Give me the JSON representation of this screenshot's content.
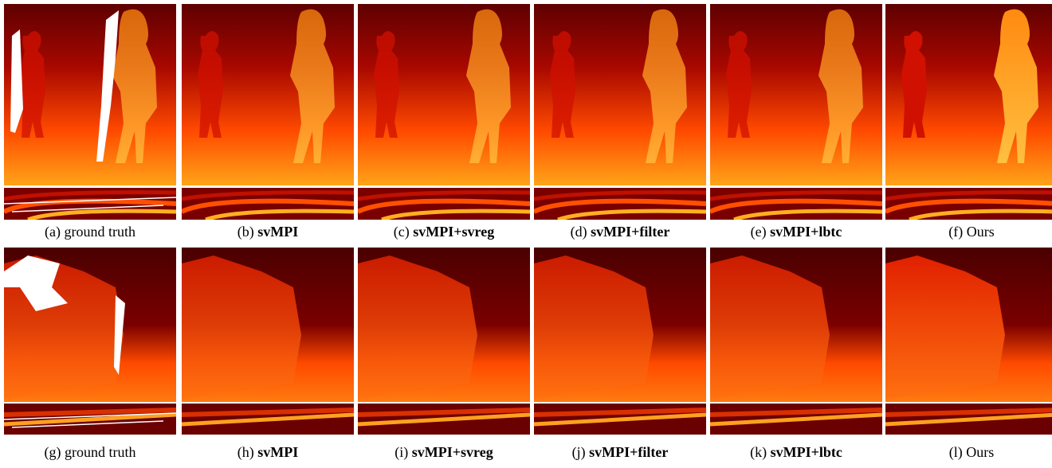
{
  "rows": [
    {
      "captions": [
        {
          "label": "(a)",
          "text": "ground truth",
          "bold": false
        },
        {
          "label": "(b)",
          "text": "svMPI",
          "bold": true
        },
        {
          "label": "(c)",
          "text": "svMPI+svreg",
          "bold": true
        },
        {
          "label": "(d)",
          "text": "svMPI+filter",
          "bold": true
        },
        {
          "label": "(e)",
          "text": "svMPI+lbtc",
          "bold": true
        },
        {
          "label": "(f)",
          "text": "Ours",
          "bold": false
        }
      ]
    },
    {
      "captions": [
        {
          "label": "(g)",
          "text": "ground truth",
          "bold": false
        },
        {
          "label": "(h)",
          "text": "svMPI",
          "bold": true
        },
        {
          "label": "(i)",
          "text": "svMPI+svreg",
          "bold": true
        },
        {
          "label": "(j)",
          "text": "svMPI+filter",
          "bold": true
        },
        {
          "label": "(k)",
          "text": "svMPI+lbtc",
          "bold": true
        },
        {
          "label": "(l)",
          "text": "Ours",
          "bold": false
        }
      ]
    }
  ]
}
